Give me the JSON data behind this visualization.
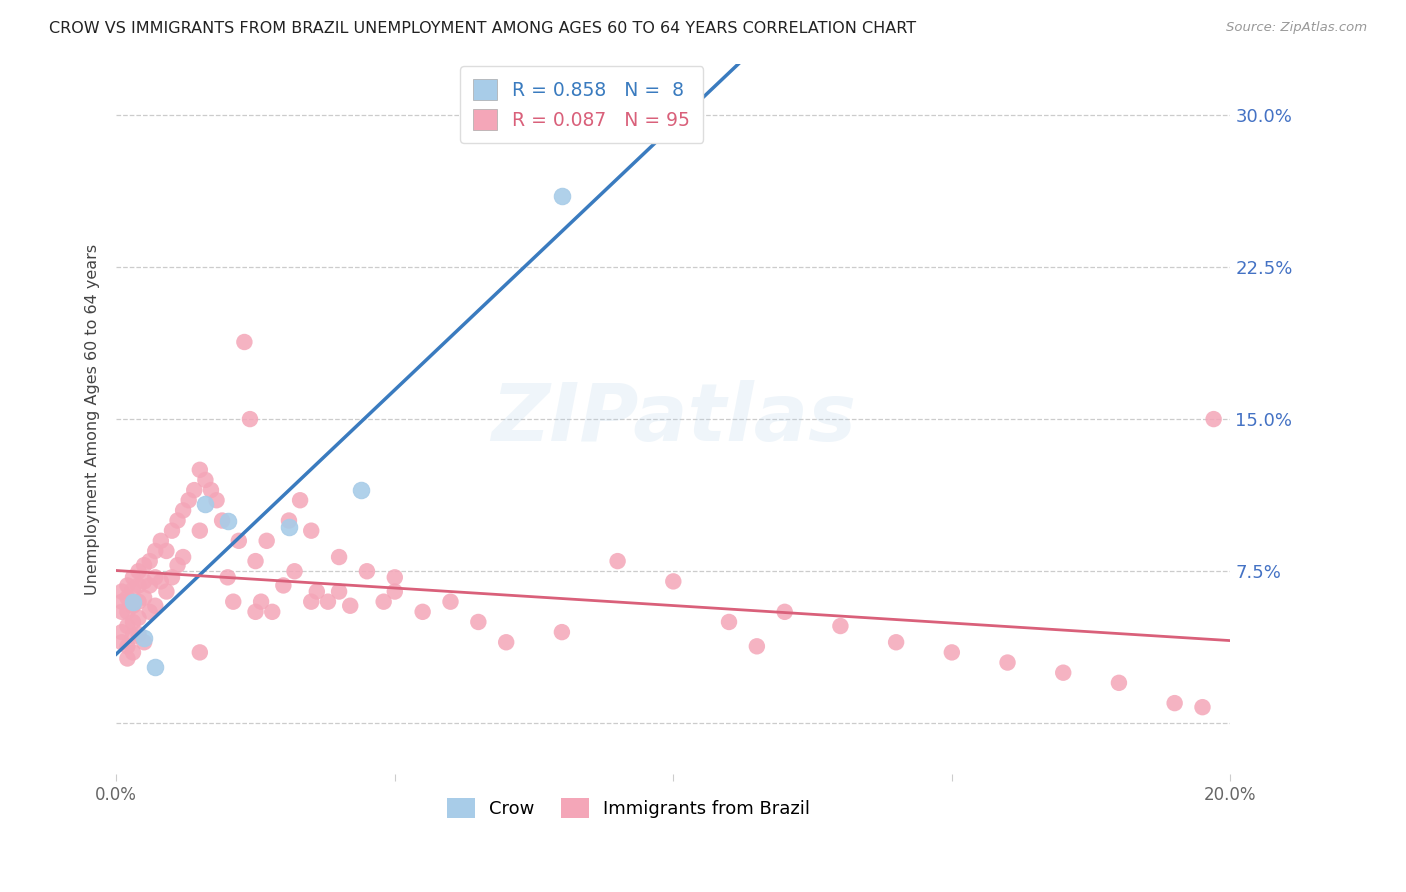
{
  "title": "CROW VS IMMIGRANTS FROM BRAZIL UNEMPLOYMENT AMONG AGES 60 TO 64 YEARS CORRELATION CHART",
  "source": "Source: ZipAtlas.com",
  "ylabel": "Unemployment Among Ages 60 to 64 years",
  "x_min": 0.0,
  "x_max": 0.2,
  "y_min": -0.025,
  "y_max": 0.325,
  "y_ticks": [
    0.0,
    0.075,
    0.15,
    0.225,
    0.3
  ],
  "y_tick_labels_right": [
    "",
    "7.5%",
    "15.0%",
    "22.5%",
    "30.0%"
  ],
  "crow_color": "#a8cce8",
  "brazil_color": "#f4a6b8",
  "crow_line_color": "#3a7bbf",
  "brazil_line_color": "#d9607a",
  "crow_R": 0.858,
  "crow_N": 8,
  "brazil_R": 0.087,
  "brazil_N": 95,
  "crow_points_x": [
    0.003,
    0.005,
    0.007,
    0.016,
    0.02,
    0.031,
    0.044,
    0.08
  ],
  "crow_points_y": [
    0.06,
    0.042,
    0.028,
    0.108,
    0.1,
    0.097,
    0.115,
    0.26
  ],
  "brazil_points_x": [
    0.001,
    0.001,
    0.001,
    0.001,
    0.001,
    0.002,
    0.002,
    0.002,
    0.002,
    0.002,
    0.002,
    0.003,
    0.003,
    0.003,
    0.003,
    0.003,
    0.003,
    0.004,
    0.004,
    0.004,
    0.004,
    0.004,
    0.005,
    0.005,
    0.005,
    0.005,
    0.006,
    0.006,
    0.006,
    0.007,
    0.007,
    0.007,
    0.008,
    0.008,
    0.009,
    0.009,
    0.01,
    0.01,
    0.011,
    0.011,
    0.012,
    0.012,
    0.013,
    0.014,
    0.015,
    0.015,
    0.016,
    0.017,
    0.018,
    0.019,
    0.02,
    0.021,
    0.022,
    0.023,
    0.024,
    0.025,
    0.026,
    0.027,
    0.028,
    0.03,
    0.031,
    0.032,
    0.033,
    0.035,
    0.036,
    0.038,
    0.04,
    0.042,
    0.045,
    0.048,
    0.05,
    0.055,
    0.06,
    0.065,
    0.07,
    0.08,
    0.09,
    0.1,
    0.11,
    0.115,
    0.12,
    0.13,
    0.14,
    0.15,
    0.16,
    0.17,
    0.18,
    0.19,
    0.195,
    0.197,
    0.05,
    0.04,
    0.035,
    0.025,
    0.015
  ],
  "brazil_points_y": [
    0.06,
    0.065,
    0.055,
    0.045,
    0.04,
    0.068,
    0.062,
    0.055,
    0.048,
    0.038,
    0.032,
    0.072,
    0.066,
    0.058,
    0.05,
    0.043,
    0.035,
    0.075,
    0.068,
    0.06,
    0.052,
    0.044,
    0.078,
    0.07,
    0.062,
    0.04,
    0.08,
    0.068,
    0.055,
    0.085,
    0.072,
    0.058,
    0.09,
    0.07,
    0.085,
    0.065,
    0.095,
    0.072,
    0.1,
    0.078,
    0.105,
    0.082,
    0.11,
    0.115,
    0.125,
    0.095,
    0.12,
    0.115,
    0.11,
    0.1,
    0.072,
    0.06,
    0.09,
    0.188,
    0.15,
    0.08,
    0.06,
    0.09,
    0.055,
    0.068,
    0.1,
    0.075,
    0.11,
    0.095,
    0.065,
    0.06,
    0.065,
    0.058,
    0.075,
    0.06,
    0.065,
    0.055,
    0.06,
    0.05,
    0.04,
    0.045,
    0.08,
    0.07,
    0.05,
    0.038,
    0.055,
    0.048,
    0.04,
    0.035,
    0.03,
    0.025,
    0.02,
    0.01,
    0.008,
    0.15,
    0.072,
    0.082,
    0.06,
    0.055,
    0.035
  ]
}
